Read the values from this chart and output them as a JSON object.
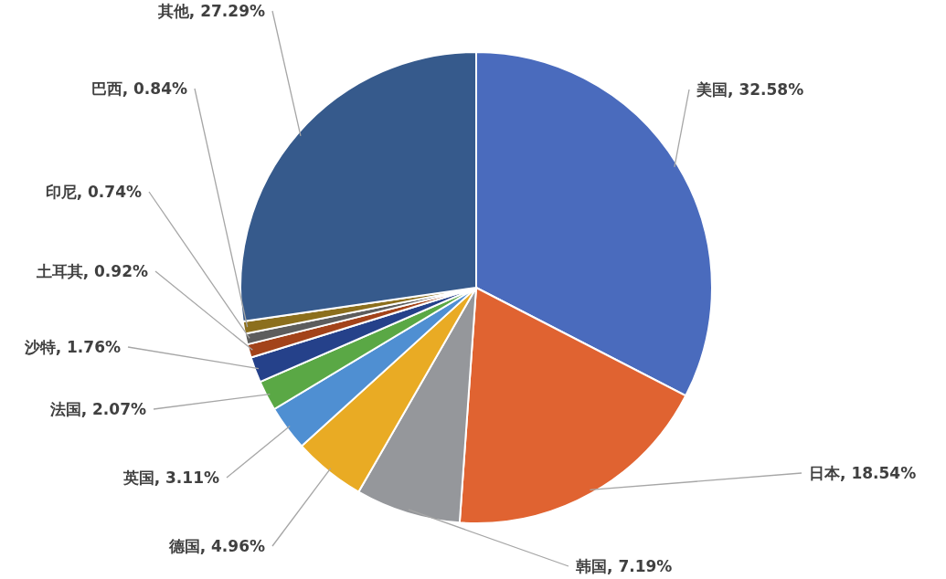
{
  "chart_data": {
    "type": "pie",
    "categories": [
      "美国",
      "日本",
      "韩国",
      "德国",
      "英国",
      "法国",
      "沙特",
      "土耳其",
      "印尼",
      "巴西",
      "其他"
    ],
    "values": [
      32.58,
      18.54,
      7.19,
      4.96,
      3.11,
      2.07,
      1.76,
      0.92,
      0.74,
      0.84,
      27.29
    ],
    "colors": [
      "#4a6bbd",
      "#e06331",
      "#95979b",
      "#e9ab24",
      "#4f8fd2",
      "#5aa845",
      "#25418a",
      "#a3431a",
      "#5d5d5d",
      "#8c6f1d",
      "#365a8c"
    ],
    "value_labels": [
      ", 32.58%",
      ", 18.54%",
      ", 7.19%",
      ", 4.96%",
      ", 3.11%",
      ", 2.07%",
      ", 1.76%",
      ", 0.92%",
      ", 0.74%",
      ", 0.84%",
      ", 27.29%"
    ]
  }
}
